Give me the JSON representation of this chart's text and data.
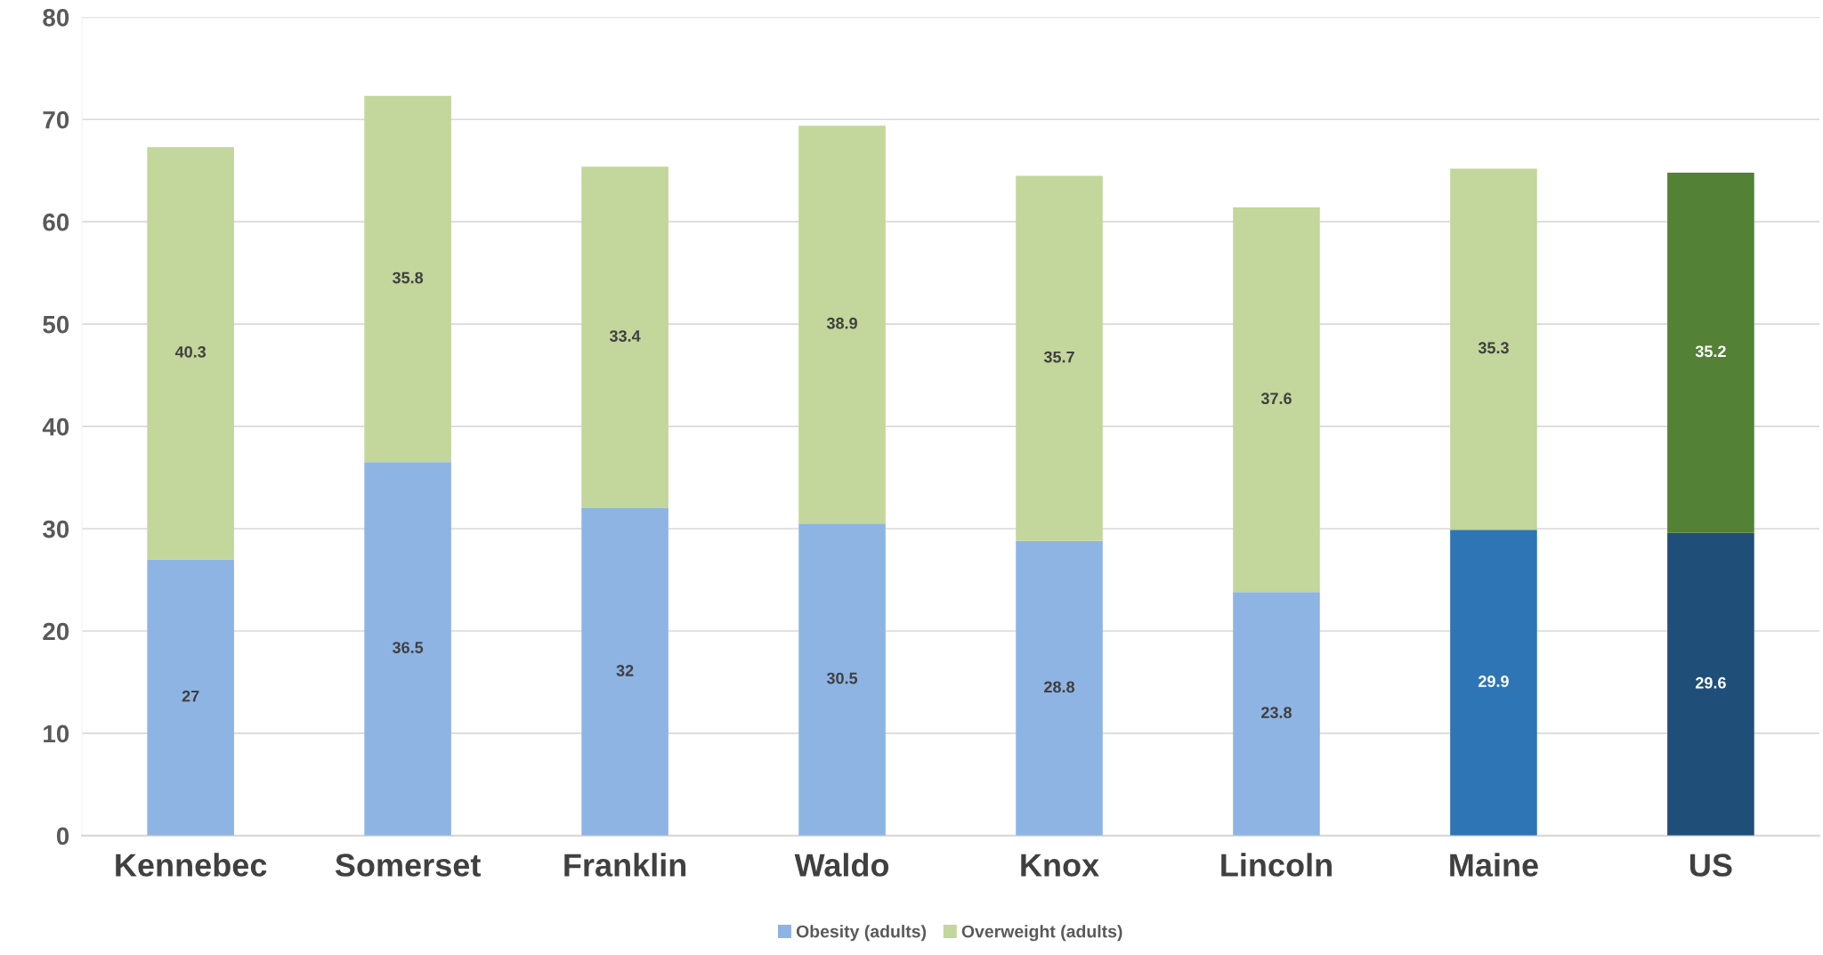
{
  "chart_data": {
    "type": "bar",
    "stacked": true,
    "categories": [
      "Kennebec",
      "Somerset",
      "Franklin",
      "Waldo",
      "Knox",
      "Lincoln",
      "Maine",
      "US"
    ],
    "series": [
      {
        "name": "Obesity (adults)",
        "color": "#8eb4e3",
        "colors": [
          "#8eb4e3",
          "#8eb4e3",
          "#8eb4e3",
          "#8eb4e3",
          "#8eb4e3",
          "#8eb4e3",
          "#2e75b6",
          "#1f4e79"
        ],
        "values": [
          27,
          36.5,
          32,
          30.5,
          28.8,
          23.8,
          29.9,
          29.6
        ]
      },
      {
        "name": "Overweight (adults)",
        "color": "#c3d69b",
        "colors": [
          "#c3d69b",
          "#c3d69b",
          "#c3d69b",
          "#c3d69b",
          "#c3d69b",
          "#c3d69b",
          "#c3d69b",
          "#538135"
        ],
        "values": [
          40.3,
          35.8,
          33.4,
          38.9,
          35.7,
          37.6,
          35.3,
          35.2
        ]
      }
    ],
    "ylim": [
      0,
      80
    ],
    "yticks": [
      0,
      10,
      20,
      30,
      40,
      50,
      60,
      70,
      80
    ],
    "grid": "y",
    "legend": "bottom",
    "data_labels": true
  }
}
